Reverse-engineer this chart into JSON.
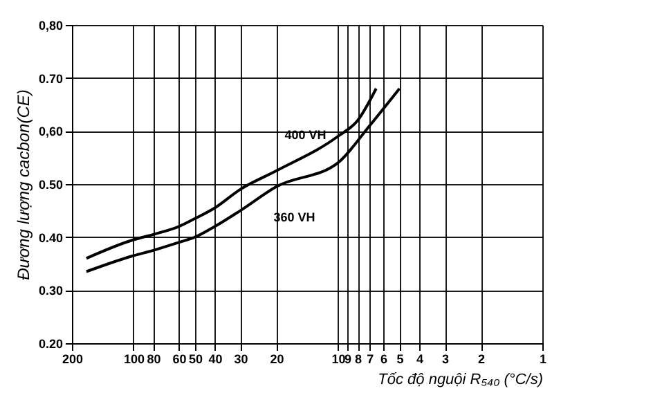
{
  "chart_data": {
    "type": "line",
    "xlabel": "Tốc độ nguội R₅₄₀ (°C/s)",
    "ylabel": "Đương lượng cacbon(CE)",
    "log": "x",
    "grid": true,
    "marker": "none",
    "line_style": "solid",
    "xlim": [
      200,
      1
    ],
    "xticks": [
      200,
      100,
      80,
      60,
      50,
      40,
      30,
      20,
      10,
      9,
      8,
      7,
      6,
      5,
      4,
      3,
      2,
      1
    ],
    "ylim": [
      0.2,
      0.8
    ],
    "yticks": [
      {
        "value": 0.2,
        "label": "0.20"
      },
      {
        "value": 0.3,
        "label": "0.30"
      },
      {
        "value": 0.4,
        "label": "0.40"
      },
      {
        "value": 0.5,
        "label": "0.50"
      },
      {
        "value": 0.6,
        "label": "0,60"
      },
      {
        "value": 0.7,
        "label": "0.70"
      },
      {
        "value": 0.8,
        "label": "0,80"
      }
    ],
    "series": [
      {
        "name": "400 VH",
        "color": "#000000",
        "x": [
          170,
          100,
          80,
          60,
          50,
          40,
          30,
          20,
          10,
          8,
          6.5
        ],
        "values": [
          0.36,
          0.395,
          0.405,
          0.42,
          0.435,
          0.455,
          0.49,
          0.525,
          0.59,
          0.62,
          0.68
        ]
      },
      {
        "name": "360 VH",
        "color": "#000000",
        "x": [
          170,
          100,
          80,
          60,
          50,
          40,
          30,
          20,
          10,
          7,
          5
        ],
        "values": [
          0.335,
          0.365,
          0.375,
          0.39,
          0.4,
          0.42,
          0.45,
          0.495,
          0.54,
          0.61,
          0.68
        ]
      }
    ]
  }
}
